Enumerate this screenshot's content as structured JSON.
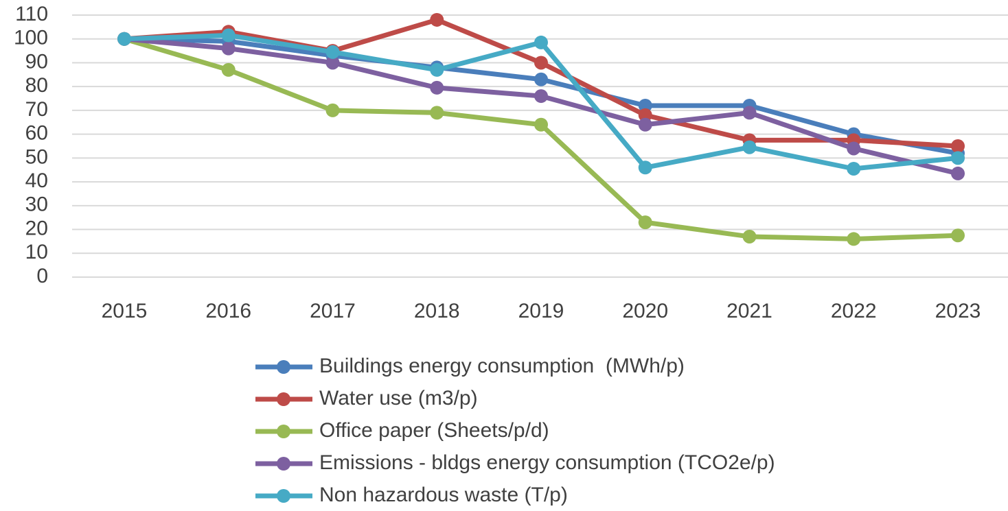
{
  "chart_data": {
    "type": "line",
    "categories": [
      "2015",
      "2016",
      "2017",
      "2018",
      "2019",
      "2020",
      "2021",
      "2022",
      "2023"
    ],
    "ylim": [
      0,
      110
    ],
    "yticks": [
      0,
      10,
      20,
      30,
      40,
      50,
      60,
      70,
      80,
      90,
      100,
      110
    ],
    "grid": true,
    "legend": "bottom",
    "series": [
      {
        "name": "Buildings energy consumption  (MWh/p)",
        "color": "#4a7ebb",
        "values": [
          100,
          99,
          93,
          88,
          83,
          72,
          72,
          60,
          52
        ]
      },
      {
        "name": "Water use (m3/p)",
        "color": "#be4b48",
        "values": [
          100,
          103,
          95,
          108,
          90,
          68,
          57.5,
          57.5,
          55
        ]
      },
      {
        "name": "Office paper (Sheets/p/d)",
        "color": "#98b954",
        "values": [
          100,
          87,
          70,
          69,
          64,
          23,
          17,
          16,
          17.5
        ]
      },
      {
        "name": "Emissions - bldgs energy consumption (TCO2e/p)",
        "color": "#7d60a0",
        "values": [
          100,
          96,
          90,
          79.5,
          76,
          64,
          69,
          54,
          43.5
        ]
      },
      {
        "name": "Non hazardous waste (T/p)",
        "color": "#46aac5",
        "values": [
          100,
          101.5,
          94.5,
          87,
          98.5,
          46,
          54.5,
          45.5,
          50
        ]
      }
    ]
  }
}
